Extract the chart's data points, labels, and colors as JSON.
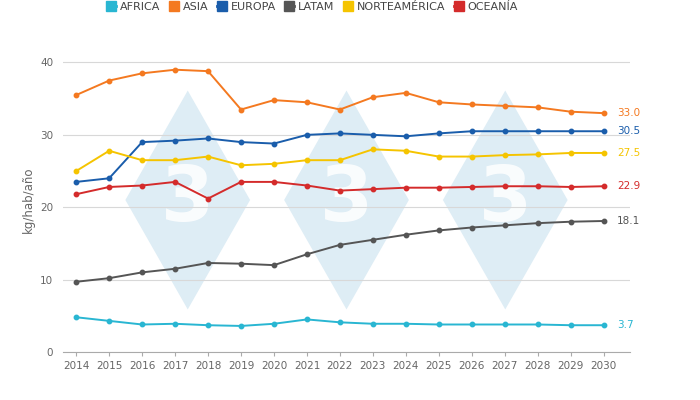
{
  "years": [
    2014,
    2015,
    2016,
    2017,
    2018,
    2019,
    2020,
    2021,
    2022,
    2023,
    2024,
    2025,
    2026,
    2027,
    2028,
    2029,
    2030
  ],
  "series": {
    "AFRICA": {
      "values": [
        4.8,
        4.3,
        3.8,
        3.9,
        3.7,
        3.6,
        3.9,
        4.5,
        4.1,
        3.9,
        3.9,
        3.8,
        3.8,
        3.8,
        3.8,
        3.7,
        3.7
      ],
      "color": "#29b6d2"
    },
    "ASIA": {
      "values": [
        35.5,
        37.5,
        38.5,
        39.0,
        38.8,
        33.5,
        34.8,
        34.5,
        33.5,
        35.2,
        35.8,
        34.5,
        34.2,
        34.0,
        33.8,
        33.2,
        33.0
      ],
      "color": "#f47920"
    },
    "EUROPA": {
      "values": [
        23.5,
        24.0,
        29.0,
        29.2,
        29.5,
        29.0,
        28.8,
        30.0,
        30.2,
        30.0,
        29.8,
        30.2,
        30.5,
        30.5,
        30.5,
        30.5,
        30.5
      ],
      "color": "#1a5dab"
    },
    "LATAM": {
      "values": [
        9.7,
        10.2,
        11.0,
        11.5,
        12.3,
        12.2,
        12.0,
        13.5,
        14.8,
        15.5,
        16.2,
        16.8,
        17.2,
        17.5,
        17.8,
        18.0,
        18.1
      ],
      "color": "#555555"
    },
    "NORTEAMÉRICA": {
      "values": [
        25.0,
        27.8,
        26.5,
        26.5,
        27.0,
        25.8,
        26.0,
        26.5,
        26.5,
        28.0,
        27.8,
        27.0,
        27.0,
        27.2,
        27.3,
        27.5,
        27.5
      ],
      "color": "#f5c400"
    },
    "OCEANÍA": {
      "values": [
        21.8,
        22.8,
        23.0,
        23.5,
        21.2,
        23.5,
        23.5,
        23.0,
        22.3,
        22.5,
        22.7,
        22.7,
        22.8,
        22.9,
        22.9,
        22.8,
        22.9
      ],
      "color": "#d42b2b"
    }
  },
  "ylabel": "kg/hab/año",
  "ylim": [
    0,
    42
  ],
  "yticks": [
    0,
    10,
    20,
    30,
    40
  ],
  "background_color": "#ffffff",
  "grid_color": "#d8d8d8",
  "watermark_color": "#deedf5",
  "label_values": {
    "AFRICA": "3.7",
    "ASIA": "33.0",
    "EUROPA": "30.5",
    "LATAM": "18.1",
    "NORTEAMÉRICA": "27.5",
    "OCEANÍA": "22.9"
  },
  "legend_order": [
    "AFRICA",
    "ASIA",
    "EUROPA",
    "LATAM",
    "NORTEAMÉRICA",
    "OCEANÍA"
  ]
}
